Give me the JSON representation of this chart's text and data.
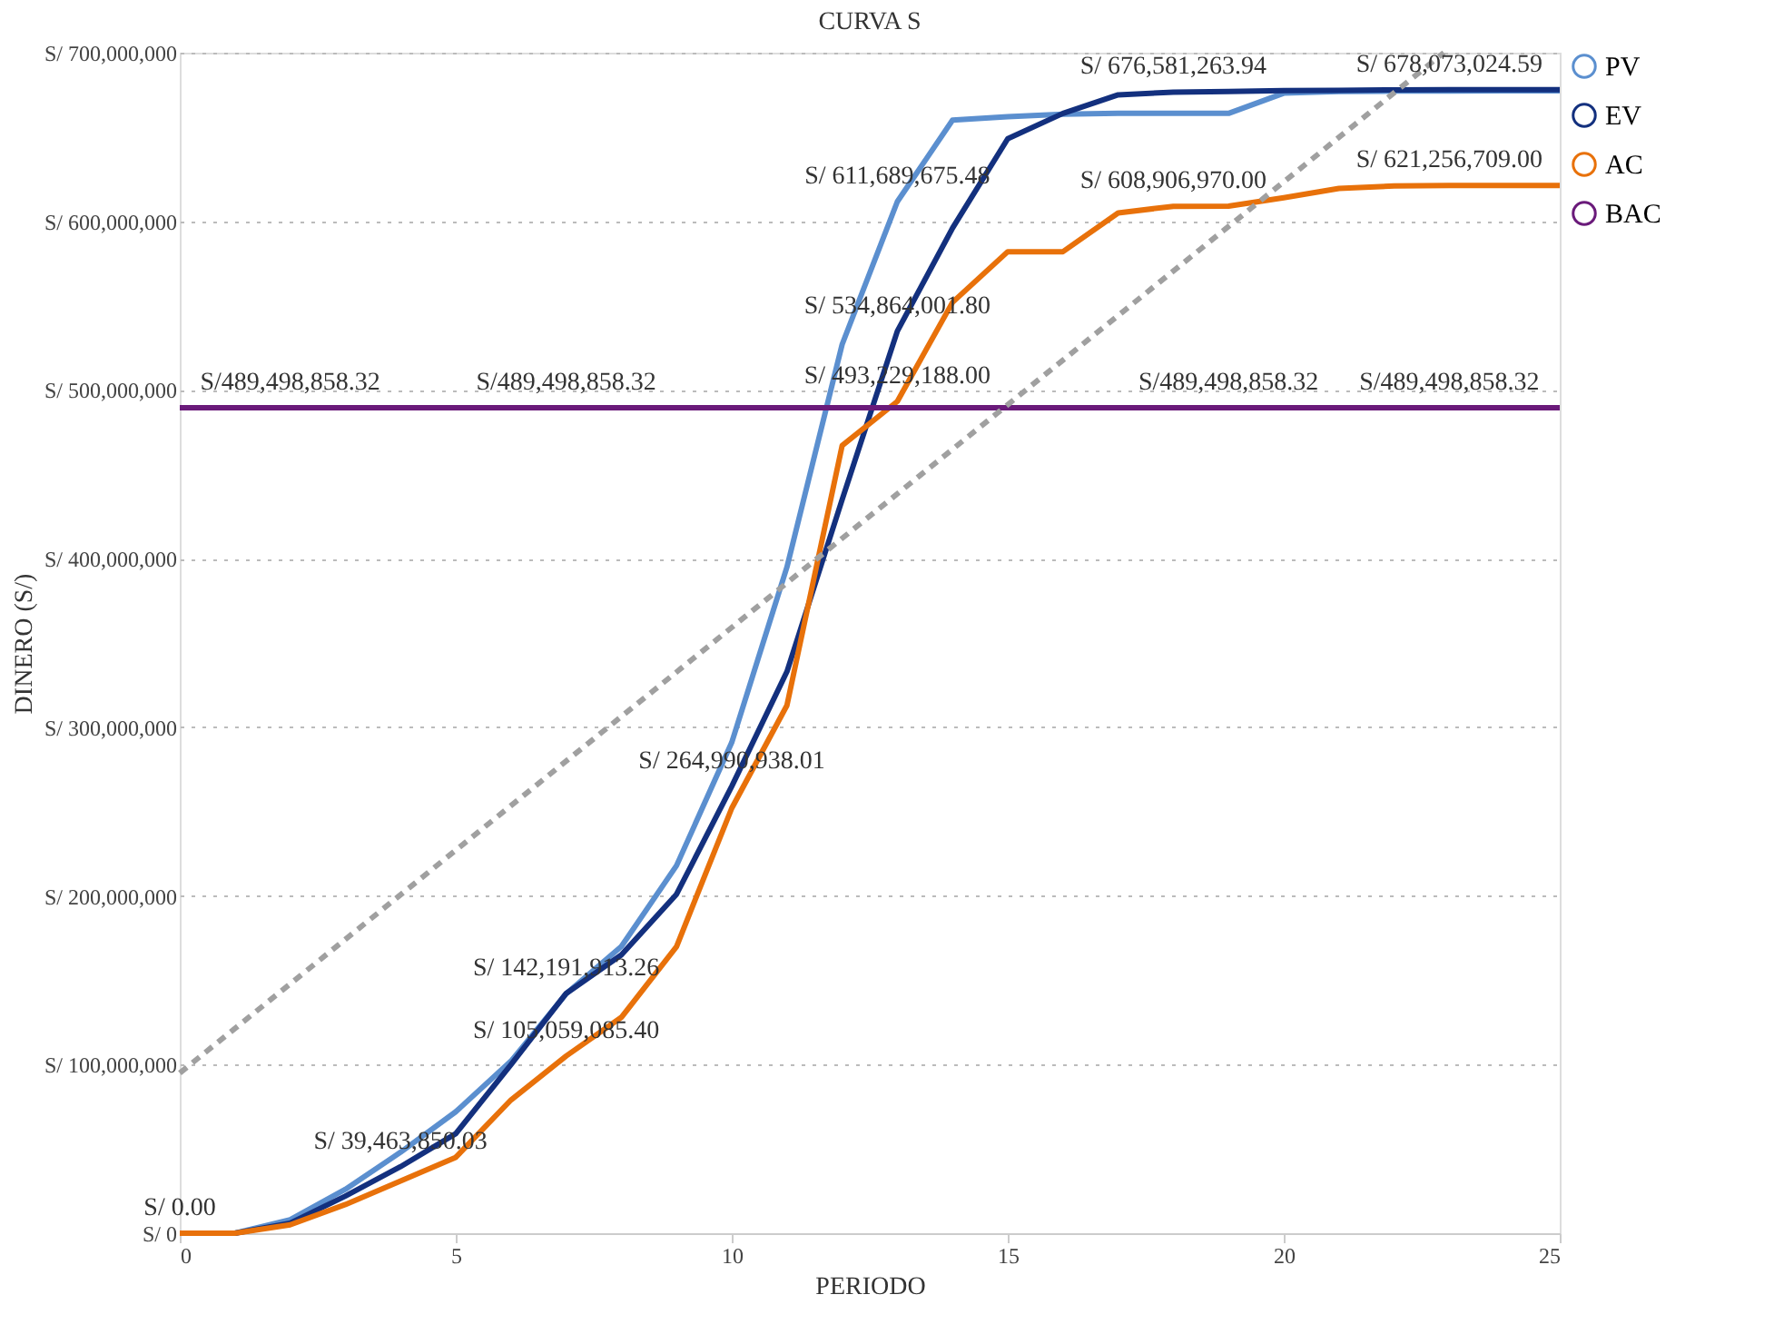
{
  "chart_data": {
    "type": "line",
    "title": "CURVA S",
    "xlabel": "PERIODO",
    "ylabel": "DINERO (S/)",
    "x": [
      0,
      1,
      2,
      3,
      4,
      5,
      6,
      7,
      8,
      9,
      10,
      11,
      12,
      13,
      14,
      15,
      16,
      17,
      18,
      19,
      20,
      21,
      22,
      23,
      24,
      25
    ],
    "xlim": [
      0,
      25
    ],
    "xticks": [
      0,
      5,
      10,
      15,
      20,
      25
    ],
    "ylim": [
      0,
      700000000
    ],
    "yticks": [
      {
        "value": 0,
        "label": "S/ 0"
      },
      {
        "value": 100000000,
        "label": "S/ 100,000,000"
      },
      {
        "value": 200000000,
        "label": "S/ 200,000,000"
      },
      {
        "value": 300000000,
        "label": "S/ 300,000,000"
      },
      {
        "value": 400000000,
        "label": "S/ 400,000,000"
      },
      {
        "value": 500000000,
        "label": "S/ 500,000,000"
      },
      {
        "value": 600000000,
        "label": "S/ 600,000,000"
      },
      {
        "value": 700000000,
        "label": "S/ 700,000,000"
      }
    ],
    "grid": "y",
    "legend": "top right",
    "series": [
      {
        "name": "PV",
        "color": "#5b8fcf",
        "values": [
          0,
          0,
          8000000,
          26000000,
          48000000,
          72000000,
          102000000,
          142000000,
          170000000,
          218000000,
          291000000,
          395000000,
          527000000,
          611689675.48,
          660000000,
          662000000,
          663500000,
          664000000,
          664000000,
          664000000,
          676000000,
          677000000,
          677200000,
          677300000,
          677400000,
          677400000
        ]
      },
      {
        "name": "EV",
        "color": "#13307e",
        "values": [
          0,
          0,
          6000000,
          22000000,
          39463850.03,
          59000000,
          100000000,
          142191913.26,
          165000000,
          201000000,
          264990938.01,
          333000000,
          435000000,
          534864001.8,
          596000000,
          649000000,
          664000000,
          675000000,
          676581263.94,
          677000000,
          677500000,
          677700000,
          677900000,
          678073024.59,
          678073024.59,
          678073024.59
        ]
      },
      {
        "name": "AC",
        "color": "#e8710a",
        "values": [
          0,
          0,
          5000000,
          17000000,
          31000000,
          45000000,
          79000000,
          105059085.4,
          128000000,
          170000000,
          252000000,
          313000000,
          467000000,
          493229188.0,
          552000000,
          582000000,
          582000000,
          605000000,
          608906970.0,
          609000000,
          614000000,
          619500000,
          621000000,
          621256709.0,
          621256709.0,
          621256709.0
        ]
      },
      {
        "name": "BAC",
        "color": "#6a1a7a",
        "values": [
          489498858.32,
          489498858.32,
          489498858.32,
          489498858.32,
          489498858.32,
          489498858.32,
          489498858.32,
          489498858.32,
          489498858.32,
          489498858.32,
          489498858.32,
          489498858.32,
          489498858.32,
          489498858.32,
          489498858.32,
          489498858.32,
          489498858.32,
          489498858.32,
          489498858.32,
          489498858.32,
          489498858.32,
          489498858.32,
          489498858.32,
          489498858.32,
          489498858.32,
          489498858.32
        ]
      },
      {
        "type": "line",
        "color": "#a0a0a0",
        "line_style": "dashed",
        "x": [
          0,
          22.9
        ],
        "values": [
          95000000,
          700000000
        ]
      }
    ],
    "annotations": [
      {
        "text": "S/ 0.00",
        "x": 0,
        "y": 0
      },
      {
        "text": "S/ 39,463,850.03",
        "x": 4,
        "y": 39463850.03
      },
      {
        "text": "S/ 105,059,085.40",
        "x": 7,
        "y": 105059085.4
      },
      {
        "text": "S/ 142,191,913.26",
        "x": 7,
        "y": 142191913.26
      },
      {
        "text": "S/ 264,990,938.01",
        "x": 10,
        "y": 264990938.01
      },
      {
        "text": "S/ 493,229,188.00",
        "x": 13,
        "y": 493229188.0
      },
      {
        "text": "S/ 534,864,001.80",
        "x": 13,
        "y": 534864001.8
      },
      {
        "text": "S/ 611,689,675.48",
        "x": 13,
        "y": 611689675.48
      },
      {
        "text": "S/ 608,906,970.00",
        "x": 18,
        "y": 608906970.0
      },
      {
        "text": "S/ 676,581,263.94",
        "x": 18,
        "y": 676581263.94
      },
      {
        "text": "S/ 621,256,709.00",
        "x": 23,
        "y": 621256709.0
      },
      {
        "text": "S/ 678,073,024.59",
        "x": 23,
        "y": 678073024.59
      },
      {
        "text": "S/489,498,858.32",
        "x": 2,
        "y": 489498858.32
      },
      {
        "text": "S/489,498,858.32",
        "x": 7,
        "y": 489498858.32
      },
      {
        "text": "S/489,498,858.32",
        "x": 19,
        "y": 489498858.32
      },
      {
        "text": "S/489,498,858.32",
        "x": 23,
        "y": 489498858.32
      }
    ]
  }
}
